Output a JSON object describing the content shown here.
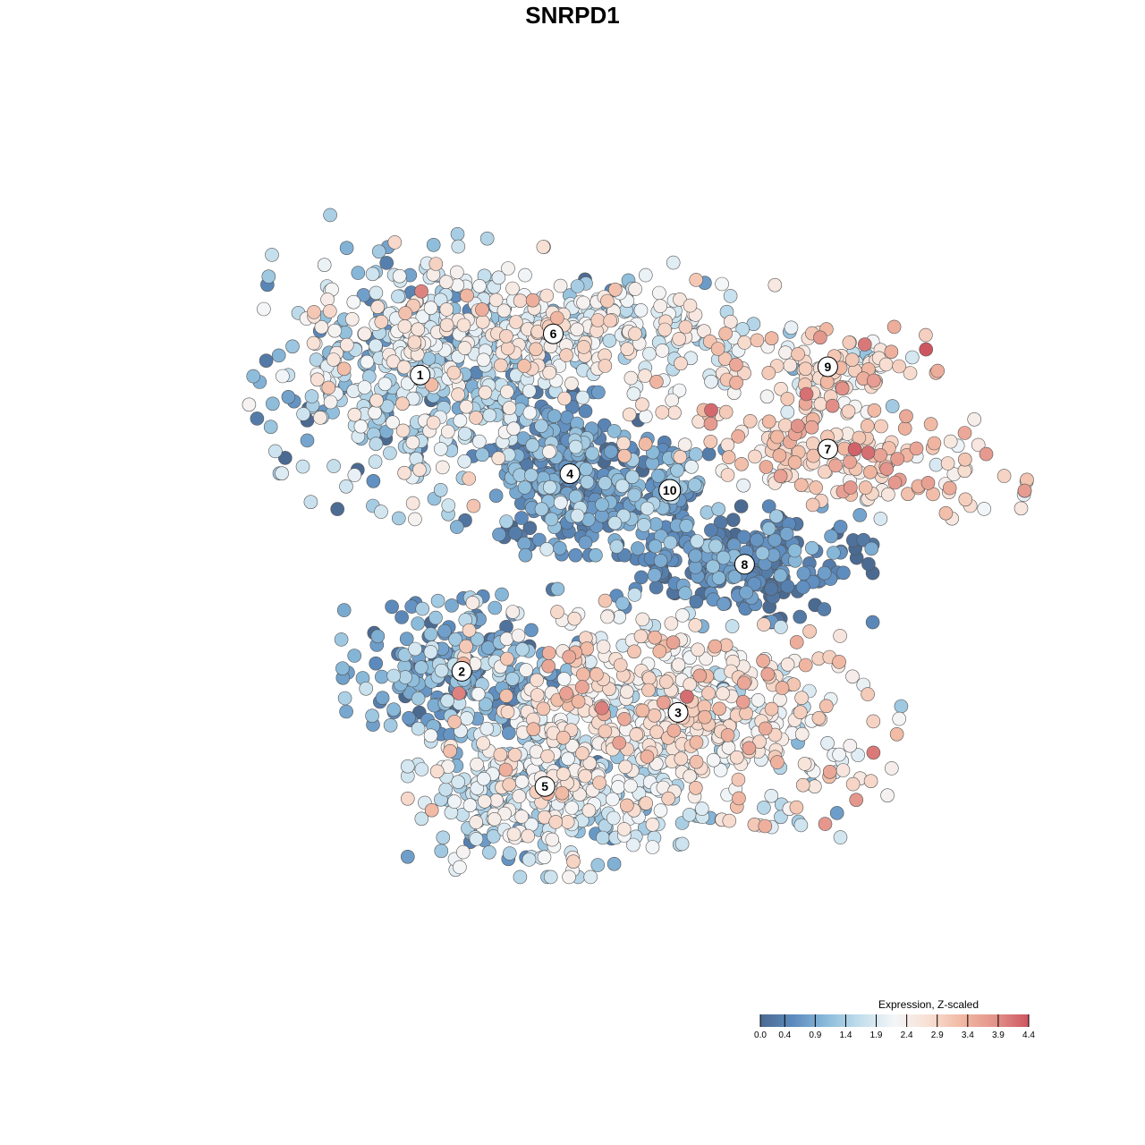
{
  "chart_data": {
    "type": "scatter",
    "title": "SNRPD1",
    "xlabel": "",
    "ylabel": "",
    "grid": false,
    "axes_visible": false,
    "legend": {
      "title": "Expression, Z-scaled",
      "placement": "bottom-right",
      "ticks": [
        "0.0",
        "0.4",
        "0.9",
        "1.4",
        "1.9",
        "2.4",
        "2.9",
        "3.4",
        "3.9",
        "4.4"
      ],
      "range": [
        0,
        4.4
      ]
    },
    "color_scale": [
      "#4b6a91",
      "#5d8cbf",
      "#8cbcdb",
      "#c4dfed",
      "#f4f6f8",
      "#f8e0d4",
      "#f1b9a3",
      "#e3938a",
      "#cd5560"
    ],
    "point_stroke": "#555555",
    "xlim": [
      0,
      100
    ],
    "ylim": [
      0,
      100
    ],
    "clusters": [
      {
        "label": "1",
        "x": 29,
        "y": 74,
        "mean_expr": 1.5,
        "expr_sd": 0.7,
        "n": 420,
        "sx": 9,
        "sy": 8,
        "rot": -0.15
      },
      {
        "label": "6",
        "x": 45,
        "y": 79,
        "mean_expr": 2.1,
        "expr_sd": 0.55,
        "n": 360,
        "sx": 13,
        "sy": 3.6,
        "rot": 0.05
      },
      {
        "label": "9",
        "x": 78,
        "y": 75,
        "mean_expr": 2.8,
        "expr_sd": 0.5,
        "n": 110,
        "sx": 6,
        "sy": 2.5,
        "rot": 0.0
      },
      {
        "label": "7",
        "x": 78,
        "y": 65,
        "mean_expr": 2.9,
        "expr_sd": 0.55,
        "n": 200,
        "sx": 11,
        "sy": 3.2,
        "rot": -0.2
      },
      {
        "label": "4",
        "x": 47,
        "y": 62,
        "mean_expr": 0.6,
        "expr_sd": 0.45,
        "n": 280,
        "sx": 4.5,
        "sy": 4.5,
        "rot": 0.0
      },
      {
        "label": "10",
        "x": 59,
        "y": 60,
        "mean_expr": 0.8,
        "expr_sd": 0.45,
        "n": 90,
        "sx": 3,
        "sy": 3.5,
        "rot": 0.0
      },
      {
        "label": "8",
        "x": 68,
        "y": 51,
        "mean_expr": 0.4,
        "expr_sd": 0.35,
        "n": 260,
        "sx": 7,
        "sy": 3.2,
        "rot": 0.0
      },
      {
        "label": "2",
        "x": 34,
        "y": 38,
        "mean_expr": 0.8,
        "expr_sd": 0.5,
        "n": 220,
        "sx": 6.5,
        "sy": 4.0,
        "rot": 0.1
      },
      {
        "label": "3",
        "x": 60,
        "y": 33,
        "mean_expr": 2.4,
        "expr_sd": 0.6,
        "n": 520,
        "sx": 12,
        "sy": 5.5,
        "rot": -0.15
      },
      {
        "label": "5",
        "x": 44,
        "y": 24,
        "mean_expr": 1.8,
        "expr_sd": 0.55,
        "n": 380,
        "sx": 7.5,
        "sy": 5.0,
        "rot": 0.0
      }
    ]
  }
}
